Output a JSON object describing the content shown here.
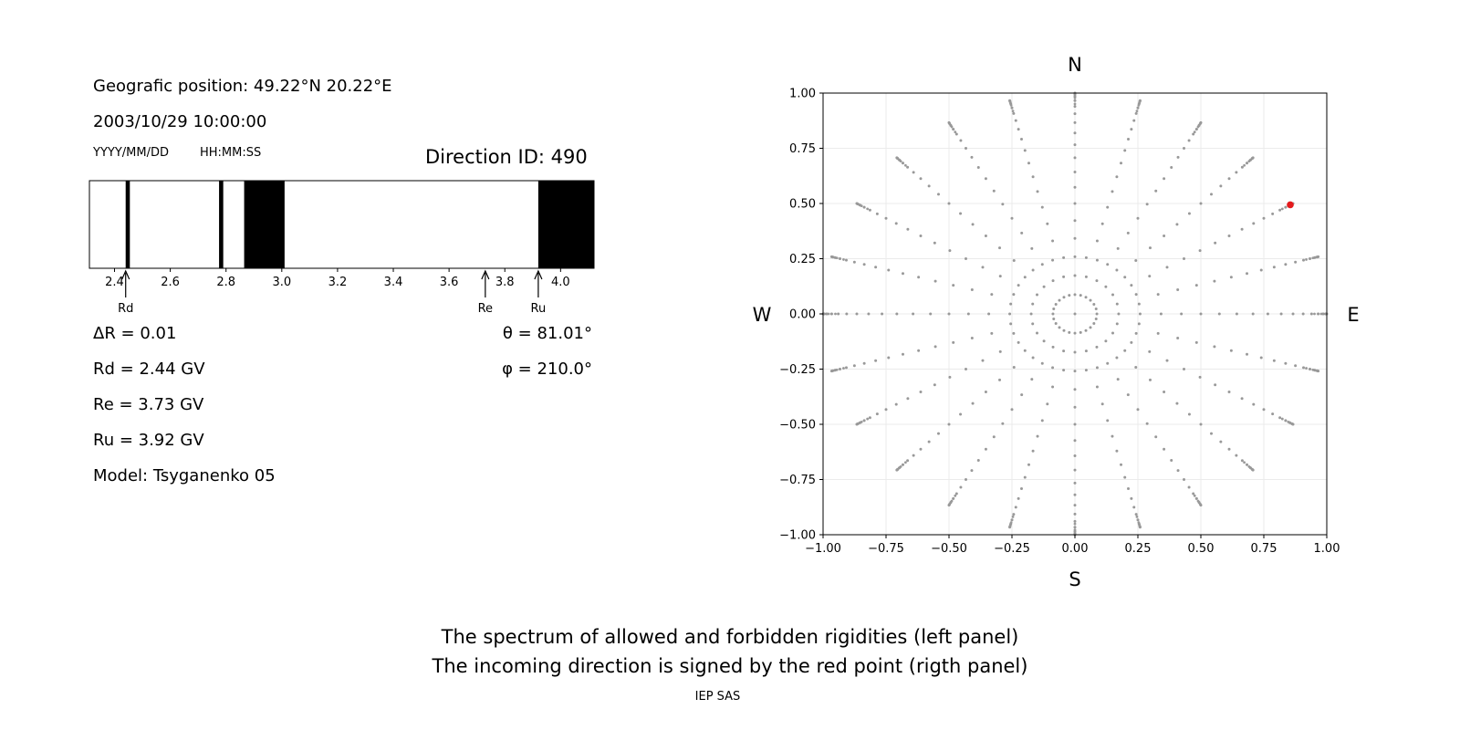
{
  "info": {
    "position": "Geografic position: 49.22°N 20.22°E",
    "datetime": "2003/10/29 10:00:00",
    "date_format": "YYYY/MM/DD",
    "time_format": "HH:MM:SS",
    "direction_id": "Direction ID: 490"
  },
  "stats": {
    "delta_r": "ΔR = 0.01",
    "rd": "Rd = 2.44 GV",
    "re": "Re = 3.73 GV",
    "ru": "Ru = 3.92 GV",
    "model": "Model: Tsyganenko 05",
    "theta": "θ = 81.01°",
    "phi": "φ = 210.0°"
  },
  "captions": {
    "line1": "The spectrum of allowed and forbidden rigidities (left panel)",
    "line2": "The incoming direction is signed by the red point (rigth panel)",
    "credit": "IEP SAS"
  },
  "compass": {
    "north": "N",
    "south": "S",
    "west": "W",
    "east": "E"
  },
  "chart_data": [
    {
      "type": "spectrum",
      "xlim": [
        2.31,
        4.12
      ],
      "ticks": [
        "2.4",
        "2.6",
        "2.8",
        "3.0",
        "3.2",
        "3.4",
        "3.6",
        "3.8",
        "4.0"
      ],
      "tick_values": [
        2.4,
        2.6,
        2.8,
        3.0,
        3.2,
        3.4,
        3.6,
        3.8,
        4.0
      ],
      "forbidden_bands": [
        [
          2.44,
          2.455
        ],
        [
          2.775,
          2.79
        ],
        [
          2.865,
          3.01
        ],
        [
          3.92,
          4.12
        ]
      ],
      "markers": [
        {
          "label": "Rd",
          "value": 2.44
        },
        {
          "label": "Re",
          "value": 3.73
        },
        {
          "label": "Ru",
          "value": 3.92
        }
      ],
      "colors": {
        "forbidden": "#000000",
        "allowed": "#ffffff"
      }
    },
    {
      "type": "scatter",
      "xlim": [
        -1.0,
        1.0
      ],
      "ylim": [
        -1.0,
        1.0
      ],
      "ticks": [
        "−1.00",
        "−0.75",
        "−0.50",
        "−0.25",
        "0.00",
        "0.25",
        "0.50",
        "0.75",
        "1.00"
      ],
      "tick_values": [
        -1.0,
        -0.75,
        -0.5,
        -0.25,
        0.0,
        0.25,
        0.5,
        0.75,
        1.0
      ],
      "grid": true,
      "pattern": {
        "zenith_steps_deg": [
          5,
          10,
          15,
          20,
          25,
          30,
          35,
          40,
          45,
          50,
          55,
          60,
          65,
          70,
          75,
          80,
          85,
          90
        ],
        "azimuth_step_deg": 15,
        "radius_rule": "sin(zenith)",
        "ring_15_deg_point_count": 36
      },
      "points_color": "#999999",
      "highlight": {
        "x": 0.855,
        "y": 0.494,
        "color": "#e41a1c"
      }
    }
  ]
}
